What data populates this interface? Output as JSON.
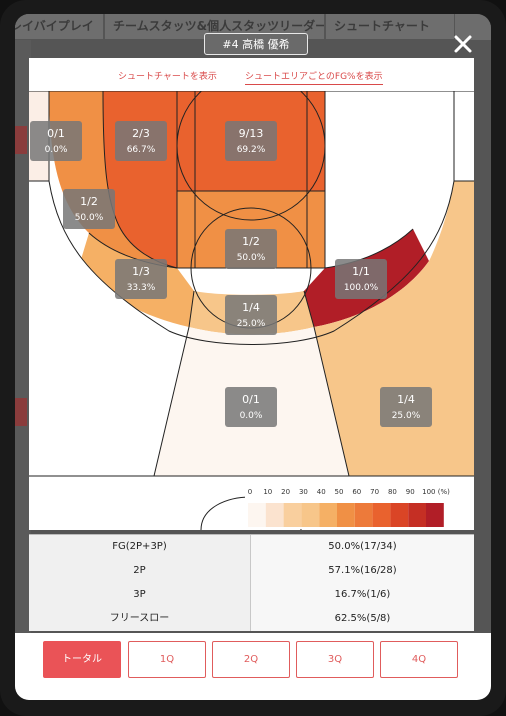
{
  "background_tabs": [
    "レイバイプレイ",
    "チームスタッツ&個人スタッツリーダース",
    "シュートチャート"
  ],
  "player": "#4 高橋 優希",
  "toggles": {
    "shot_chart": "シュートチャートを表示",
    "fg_by_area": "シュートエリアごとのFG%を表示",
    "active": "fg_by_area"
  },
  "zones": [
    {
      "id": "left-corner-3",
      "made_att": "0/1",
      "pct": "0.0%",
      "fill": "#fbeee6"
    },
    {
      "id": "left-paint-mid",
      "made_att": "2/3",
      "pct": "66.7%",
      "fill": "#e9622e"
    },
    {
      "id": "restricted-area",
      "made_att": "9/13",
      "pct": "69.2%",
      "fill": "#e9622e"
    },
    {
      "id": "left-baseline-mid",
      "made_att": "1/2",
      "pct": "50.0%",
      "fill": "#f09045"
    },
    {
      "id": "paint-center",
      "made_att": "1/2",
      "pct": "50.0%",
      "fill": "#f09045"
    },
    {
      "id": "left-wing-mid",
      "made_att": "1/3",
      "pct": "33.3%",
      "fill": "#f5b065"
    },
    {
      "id": "right-wing-mid",
      "made_att": "1/1",
      "pct": "100.0%",
      "fill": "#b11e27"
    },
    {
      "id": "top-key-mid",
      "made_att": "1/4",
      "pct": "25.0%",
      "fill": "#f7c68a"
    },
    {
      "id": "top-3",
      "made_att": "0/1",
      "pct": "0.0%",
      "fill": "#fdf6f0"
    },
    {
      "id": "right-wing-3",
      "made_att": "1/4",
      "pct": "25.0%",
      "fill": "#f7c68a"
    },
    {
      "id": "left-wing-3",
      "made_att": "",
      "pct": "",
      "fill": "#ffffff"
    },
    {
      "id": "right-corner-3",
      "made_att": "",
      "pct": "",
      "fill": "#ffffff"
    },
    {
      "id": "right-baseline-mid",
      "made_att": "",
      "pct": "",
      "fill": "#ffffff"
    }
  ],
  "legend": {
    "ticks": [
      "0",
      "10",
      "20",
      "30",
      "40",
      "50",
      "60",
      "70",
      "80",
      "90",
      "100 (%)"
    ],
    "colors": [
      "#fdf6f0",
      "#fbe3cf",
      "#f9cf9e",
      "#f7c68a",
      "#f5b065",
      "#f09045",
      "#ed7a3a",
      "#e9622e",
      "#da4526",
      "#c52f24",
      "#b11e27"
    ]
  },
  "stats": [
    {
      "label": "FG(2P+3P)",
      "value": "50.0%(17/34)"
    },
    {
      "label": "2P",
      "value": "57.1%(16/28)"
    },
    {
      "label": "3P",
      "value": "16.7%(1/6)"
    },
    {
      "label": "フリースロー",
      "value": "62.5%(5/8)"
    }
  ],
  "quarter_buttons": [
    "トータル",
    "1Q",
    "2Q",
    "3Q",
    "4Q"
  ],
  "active_quarter": "トータル",
  "colors": {
    "accent": "#ea5357"
  }
}
